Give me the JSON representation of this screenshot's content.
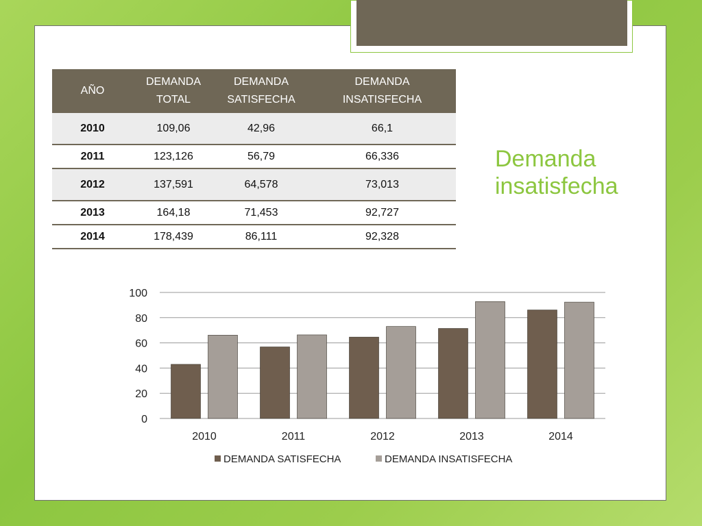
{
  "heading": {
    "line1": "Demanda",
    "line2": "insatisfecha"
  },
  "table": {
    "headers": [
      {
        "line1": "AÑO",
        "line2": ""
      },
      {
        "line1": "DEMANDA",
        "line2": "TOTAL"
      },
      {
        "line1": "DEMANDA",
        "line2": "SATISFECHA"
      },
      {
        "line1": "DEMANDA",
        "line2": "INSATISFECHA"
      }
    ],
    "rows": [
      {
        "year": "2010",
        "total": "109,06",
        "satisfecha": "42,96",
        "insatisfecha": "66,1"
      },
      {
        "year": "2011",
        "total": "123,126",
        "satisfecha": "56,79",
        "insatisfecha": "66,336"
      },
      {
        "year": "2012",
        "total": "137,591",
        "satisfecha": "64,578",
        "insatisfecha": "73,013"
      },
      {
        "year": "2013",
        "total": "164,18",
        "satisfecha": "71,453",
        "insatisfecha": "92,727"
      },
      {
        "year": "2014",
        "total": "178,439",
        "satisfecha": "86,111",
        "insatisfecha": "92,328"
      }
    ]
  },
  "chart_data": {
    "type": "bar",
    "categories": [
      "2010",
      "2011",
      "2012",
      "2013",
      "2014"
    ],
    "series": [
      {
        "name": "DEMANDA SATISFECHA",
        "values": [
          42.96,
          56.79,
          64.578,
          71.453,
          86.111
        ],
        "color": "#6f5e4e"
      },
      {
        "name": "DEMANDA INSATISFECHA",
        "values": [
          66.1,
          66.336,
          73.013,
          92.727,
          92.328
        ],
        "color": "#a59e98"
      }
    ],
    "yticks": [
      0,
      20,
      40,
      60,
      80,
      100
    ],
    "ylim": [
      0,
      100
    ],
    "grid": true,
    "legend": "bottom"
  }
}
